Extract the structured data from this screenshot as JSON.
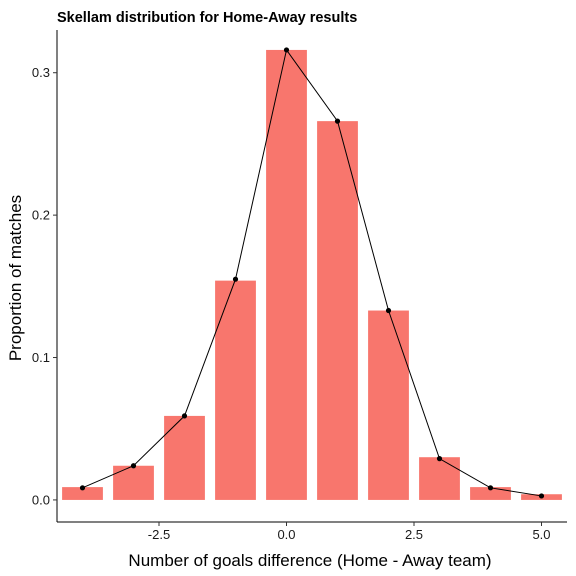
{
  "chart_data": {
    "type": "bar",
    "title": "Skellam distribution for Home-Away results",
    "xlabel": "Number of goals difference (Home - Away team)",
    "ylabel": "Proportion of matches",
    "xlim": [
      -4.5,
      5.5
    ],
    "ylim": [
      -0.0155,
      0.33
    ],
    "x_ticks": [
      -2.5,
      0.0,
      2.5,
      5.0
    ],
    "x_tick_labels": [
      "-2.5",
      "0.0",
      "2.5",
      "5.0"
    ],
    "y_ticks": [
      0.0,
      0.1,
      0.2,
      0.3
    ],
    "y_tick_labels": [
      "0.0",
      "0.1",
      "0.2",
      "0.3"
    ],
    "grid": false,
    "bar_color": "#F8766D",
    "line_color": "#000000",
    "series": [
      {
        "type": "bar",
        "x": [
          -4,
          -3,
          -2,
          -1,
          0,
          1,
          2,
          3,
          4,
          5
        ],
        "values": [
          0.009,
          0.024,
          0.059,
          0.154,
          0.316,
          0.266,
          0.133,
          0.03,
          0.009,
          0.004
        ]
      },
      {
        "type": "line",
        "x": [
          -4,
          -3,
          -2,
          -1,
          0,
          1,
          2,
          3,
          4,
          5
        ],
        "values": [
          0.0085,
          0.024,
          0.059,
          0.155,
          0.316,
          0.266,
          0.133,
          0.029,
          0.0085,
          0.0028
        ]
      }
    ]
  }
}
